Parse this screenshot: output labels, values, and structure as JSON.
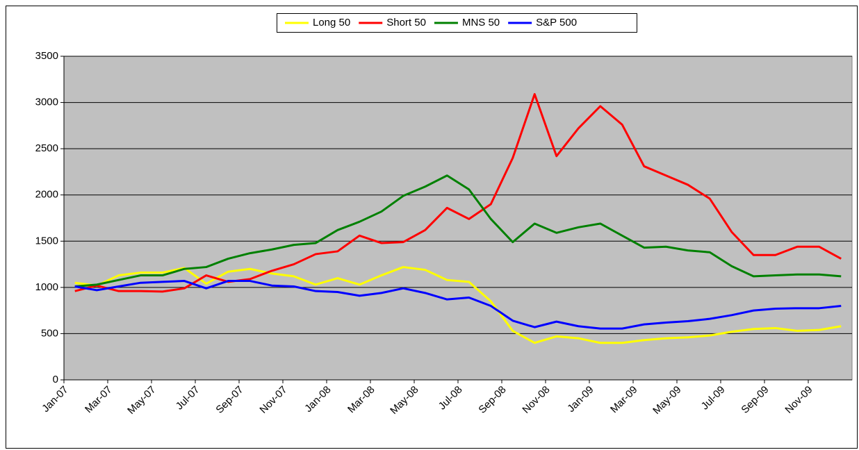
{
  "chart_data": {
    "type": "line",
    "categories": [
      "Jan-07",
      null,
      "Mar-07",
      null,
      "May-07",
      null,
      "Jul-07",
      null,
      "Sep-07",
      null,
      "Nov-07",
      null,
      "Jan-08",
      null,
      "Mar-08",
      null,
      "May-08",
      null,
      "Jul-08",
      null,
      "Sep-08",
      null,
      "Nov-08",
      null,
      "Jan-09",
      null,
      "Mar-09",
      null,
      "May-09",
      null,
      "Jul-09",
      null,
      "Sep-09",
      null,
      "Nov-09",
      null
    ],
    "series": [
      {
        "name": "Long 50",
        "color": "#ffff00",
        "values": [
          1050,
          1020,
          1130,
          1160,
          1160,
          1210,
          1040,
          1170,
          1200,
          1150,
          1120,
          1030,
          1100,
          1030,
          1130,
          1220,
          1190,
          1080,
          1060,
          850,
          530,
          400,
          470,
          450,
          400,
          400,
          430,
          450,
          460,
          480,
          520,
          550,
          560,
          530,
          540,
          580
        ]
      },
      {
        "name": "Short 50",
        "color": "#ff0000",
        "values": [
          960,
          1020,
          960,
          960,
          955,
          990,
          1130,
          1060,
          1090,
          1180,
          1250,
          1360,
          1390,
          1560,
          1480,
          1490,
          1620,
          1860,
          1740,
          1900,
          2400,
          3090,
          2420,
          2720,
          2960,
          2760,
          2310,
          2210,
          2110,
          1960,
          1600,
          1350,
          1350,
          1440,
          1440,
          1310
        ]
      },
      {
        "name": "MNS 50",
        "color": "#008000",
        "values": [
          1010,
          1030,
          1080,
          1130,
          1130,
          1200,
          1220,
          1310,
          1370,
          1410,
          1460,
          1480,
          1620,
          1710,
          1820,
          1990,
          2090,
          2210,
          2060,
          1740,
          1490,
          1690,
          1590,
          1650,
          1690,
          1560,
          1430,
          1440,
          1400,
          1380,
          1230,
          1120,
          1130,
          1140,
          1140,
          1120
        ]
      },
      {
        "name": "S&P 500",
        "color": "#0000ff",
        "values": [
          1010,
          970,
          1010,
          1050,
          1060,
          1070,
          990,
          1070,
          1070,
          1020,
          1010,
          960,
          950,
          910,
          940,
          990,
          940,
          870,
          890,
          800,
          640,
          570,
          630,
          580,
          555,
          555,
          600,
          620,
          635,
          660,
          700,
          750,
          770,
          775,
          775,
          800
        ]
      }
    ],
    "ylim": [
      0,
      3500
    ],
    "yticks": [
      0,
      500,
      1000,
      1500,
      2000,
      2500,
      3000,
      3500
    ],
    "grid": true,
    "legend": "top",
    "plot_background": "#c0c0c0"
  }
}
